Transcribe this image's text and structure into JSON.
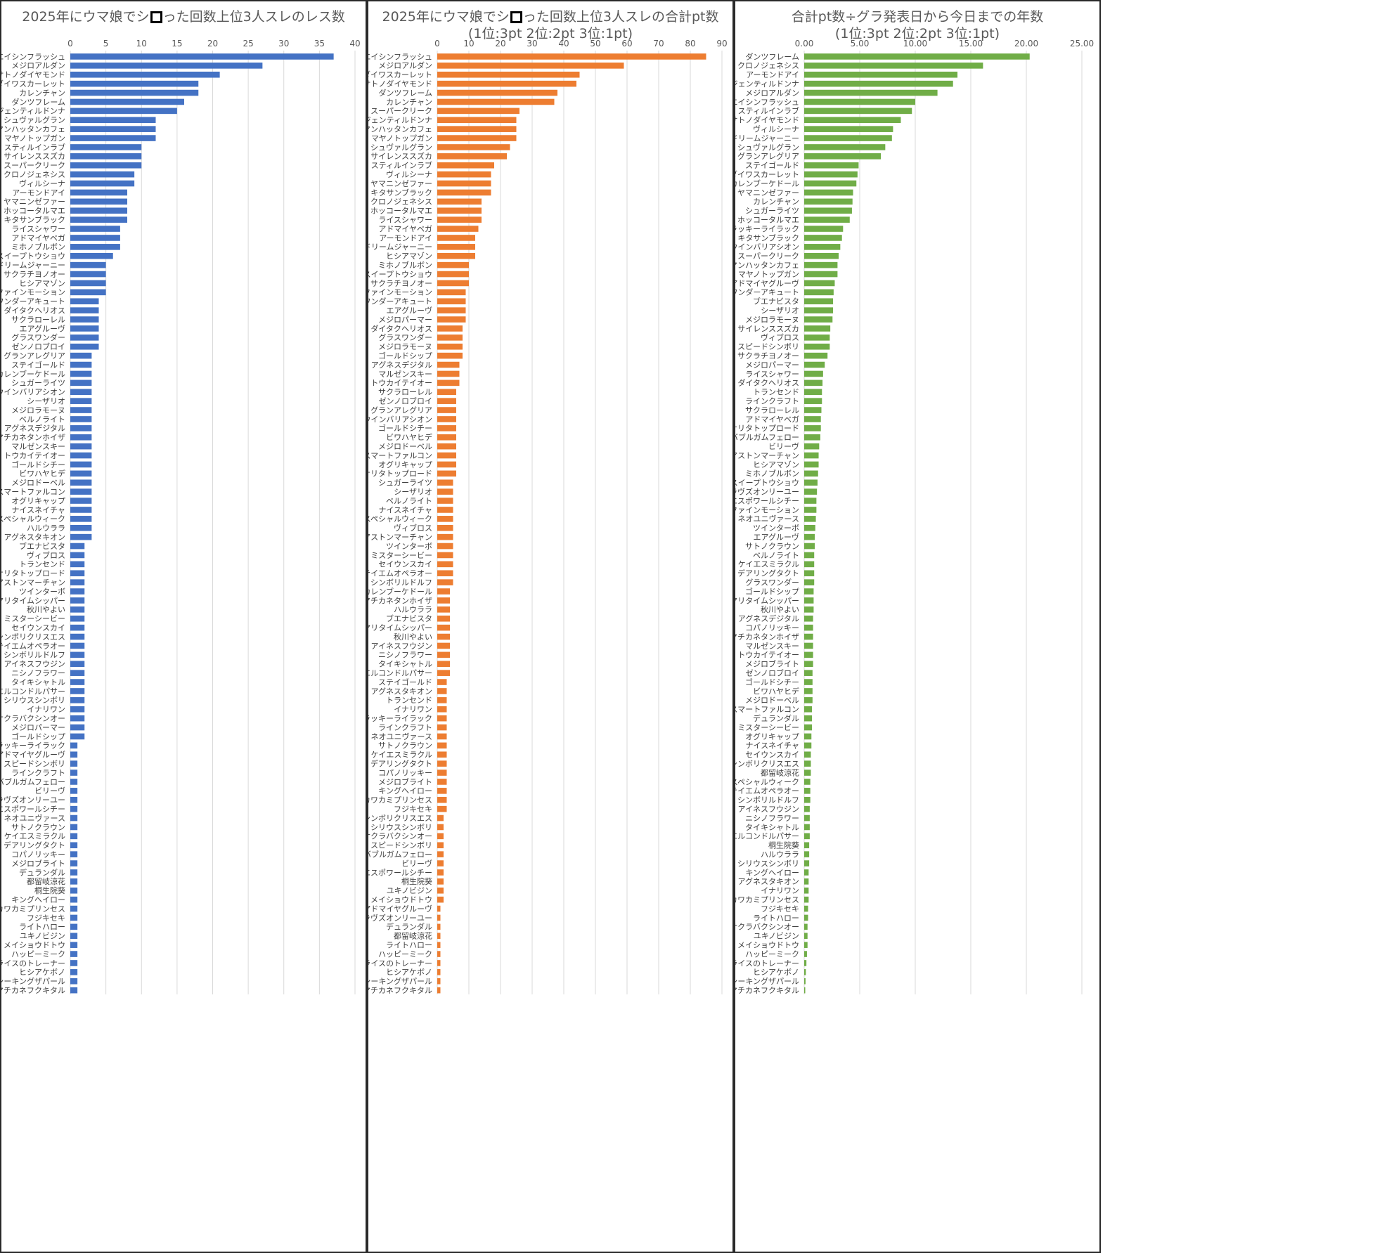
{
  "colors": {
    "blue": "#4472c4",
    "orange": "#ed7d31",
    "green": "#70ad47",
    "grid": "#d9d9d9",
    "text": "#595959",
    "border": "#2a2a2a"
  },
  "chart_data": [
    {
      "type": "bar",
      "orientation": "horizontal",
      "title_before_box": "2025年にウマ娘でシ",
      "title_after_box": "った回数上位3人スレのレス数",
      "xlim": [
        0,
        40
      ],
      "ticks": [
        "0",
        "5",
        "10",
        "15",
        "20",
        "25",
        "30",
        "35",
        "40"
      ],
      "tick_values": [
        0,
        5,
        10,
        15,
        20,
        25,
        30,
        35,
        40
      ],
      "grid": true,
      "color": "#4472c4",
      "categories": [
        "エイシンフラッシュ",
        "メジロアルダン",
        "サトノダイヤモンド",
        "ダイワスカーレット",
        "カレンチャン",
        "ダンツフレーム",
        "ジェンティルドンナ",
        "シュヴァルグラン",
        "マンハッタンカフェ",
        "マヤノトップガン",
        "スティルインラブ",
        "サイレンススズカ",
        "スーパークリーク",
        "クロノジェネシス",
        "ヴィルシーナ",
        "アーモンドアイ",
        "ヤマニンゼファー",
        "ホッコータルマエ",
        "キタサンブラック",
        "ライスシャワー",
        "アドマイヤベガ",
        "ミホノブルボン",
        "スイープトウショウ",
        "ドリームジャーニー",
        "サクラチヨノオー",
        "ヒシアマゾン",
        "ファインモーション",
        "ワンダーアキュート",
        "ダイタクヘリオス",
        "サクラローレル",
        "エアグルーヴ",
        "グラスワンダー",
        "ゼンノロブロイ",
        "グランアレグリア",
        "ステイゴールド",
        "カレンブーケドール",
        "シュガーライツ",
        "ウインバリアシオン",
        "シーザリオ",
        "メジロラモーヌ",
        "ベルノライト",
        "アグネスデジタル",
        "マチカネタンホイザ",
        "マルゼンスキー",
        "トウカイテイオー",
        "ゴールドシチー",
        "ビワハヤヒデ",
        "メジロドーベル",
        "スマートファルコン",
        "オグリキャップ",
        "ナイスネイチャ",
        "スペシャルウィーク",
        "ハルウララ",
        "アグネスタキオン",
        "ブエナビスタ",
        "ヴィブロス",
        "トランセンド",
        "ナリタトップロード",
        "アストンマーチャン",
        "ツインターボ",
        "マリタイムシッパー",
        "秋川やよい",
        "ミスターシービー",
        "セイウンスカイ",
        "シンボリクリスエス",
        "テイエムオペラオー",
        "シンボリルドルフ",
        "アイネスフウジン",
        "ニシノフラワー",
        "タイキシャトル",
        "エルコンドルパサー",
        "シリウスシンボリ",
        "イナリワン",
        "サクラバクシンオー",
        "メジロパーマー",
        "ゴールドシップ",
        "ラッキーライラック",
        "アドマイヤグルーヴ",
        "スピードシンボリ",
        "ラインクラフト",
        "バブルガムフェロー",
        "ビリーヴ",
        "ラヴズオンリーユー",
        "エスポワールシチー",
        "ネオユニヴァース",
        "サトノクラウン",
        "ケイエスミラクル",
        "デアリングタクト",
        "コパノリッキー",
        "メジロブライト",
        "デュランダル",
        "都留岐涼花",
        "桐生院葵",
        "キングヘイロー",
        "カワカミプリンセス",
        "フジキセキ",
        "ライトハロー",
        "ユキノビジン",
        "メイショウドトウ",
        "ハッピーミーク",
        "ライスのトレーナー",
        "ヒシアケボノ",
        "シーキングザパール",
        "マチカネフクキタル"
      ],
      "values": [
        37,
        27,
        21,
        18,
        18,
        16,
        15,
        12,
        12,
        12,
        10,
        10,
        10,
        9,
        9,
        8,
        8,
        8,
        8,
        7,
        7,
        7,
        6,
        5,
        5,
        5,
        5,
        4,
        4,
        4,
        4,
        4,
        4,
        3,
        3,
        3,
        3,
        3,
        3,
        3,
        3,
        3,
        3,
        3,
        3,
        3,
        3,
        3,
        3,
        3,
        3,
        3,
        3,
        3,
        2,
        2,
        2,
        2,
        2,
        2,
        2,
        2,
        2,
        2,
        2,
        2,
        2,
        2,
        2,
        2,
        2,
        2,
        2,
        2,
        2,
        2,
        1,
        1,
        1,
        1,
        1,
        1,
        1,
        1,
        1,
        1,
        1,
        1,
        1,
        1,
        1,
        1,
        1,
        1,
        1,
        1,
        1,
        1,
        1,
        1,
        1,
        1,
        1,
        1
      ]
    },
    {
      "type": "bar",
      "orientation": "horizontal",
      "title_before_box": "2025年にウマ娘でシ",
      "title_after_box": "った回数上位3人スレの合計pt数",
      "title_line2": "(1位:3pt 2位:2pt 3位:1pt)",
      "xlim": [
        0,
        90
      ],
      "ticks": [
        "0",
        "10",
        "20",
        "30",
        "40",
        "50",
        "60",
        "70",
        "80",
        "90"
      ],
      "tick_values": [
        0,
        10,
        20,
        30,
        40,
        50,
        60,
        70,
        80,
        90
      ],
      "grid": true,
      "color": "#ed7d31",
      "categories": [
        "エイシンフラッシュ",
        "メジロアルダン",
        "ダイワスカーレット",
        "サトノダイヤモンド",
        "ダンツフレーム",
        "カレンチャン",
        "スーパークリーク",
        "ジェンティルドンナ",
        "マンハッタンカフェ",
        "マヤノトップガン",
        "シュヴァルグラン",
        "サイレンススズカ",
        "スティルインラブ",
        "ヴィルシーナ",
        "ヤマニンゼファー",
        "キタサンブラック",
        "クロノジェネシス",
        "ホッコータルマエ",
        "ライスシャワー",
        "アドマイヤベガ",
        "アーモンドアイ",
        "ドリームジャーニー",
        "ヒシアマゾン",
        "ミホノブルボン",
        "スイープトウショウ",
        "サクラチヨノオー",
        "ファインモーション",
        "ワンダーアキュート",
        "エアグルーヴ",
        "メジロパーマー",
        "ダイタクヘリオス",
        "グラスワンダー",
        "メジロラモーヌ",
        "ゴールドシップ",
        "アグネスデジタル",
        "マルゼンスキー",
        "トウカイテイオー",
        "サクラローレル",
        "ゼンノロブロイ",
        "グランアレグリア",
        "ウインバリアシオン",
        "ゴールドシチー",
        "ビワハヤヒデ",
        "メジロドーベル",
        "スマートファルコン",
        "オグリキャップ",
        "ナリタトップロード",
        "シュガーライツ",
        "シーザリオ",
        "ベルノライト",
        "ナイスネイチャ",
        "スペシャルウィーク",
        "ヴィブロス",
        "アストンマーチャン",
        "ツインターボ",
        "ミスターシービー",
        "セイウンスカイ",
        "テイエムオペラオー",
        "シンボリルドルフ",
        "カレンブーケドール",
        "マチカネタンホイザ",
        "ハルウララ",
        "ブエナビスタ",
        "マリタイムシッパー",
        "秋川やよい",
        "アイネスフウジン",
        "ニシノフラワー",
        "タイキシャトル",
        "エルコンドルパサー",
        "ステイゴールド",
        "アグネスタキオン",
        "トランセンド",
        "イナリワン",
        "ラッキーライラック",
        "ラインクラフト",
        "ネオユニヴァース",
        "サトノクラウン",
        "ケイエスミラクル",
        "デアリングタクト",
        "コパノリッキー",
        "メジロブライト",
        "キングヘイロー",
        "カワカミプリンセス",
        "フジキセキ",
        "シンボリクリスエス",
        "シリウスシンボリ",
        "サクラバクシンオー",
        "スピードシンボリ",
        "バブルガムフェロー",
        "ビリーヴ",
        "エスポワールシチー",
        "桐生院葵",
        "ユキノビジン",
        "メイショウドトウ",
        "アドマイヤグルーヴ",
        "ラヴズオンリーユー",
        "デュランダル",
        "都留岐涼花",
        "ライトハロー",
        "ハッピーミーク",
        "ライスのトレーナー",
        "ヒシアケボノ",
        "シーキングザパール",
        "マチカネフクキタル"
      ],
      "values": [
        85,
        59,
        45,
        44,
        38,
        37,
        26,
        25,
        25,
        25,
        23,
        22,
        18,
        17,
        17,
        17,
        14,
        14,
        14,
        13,
        12,
        12,
        12,
        10,
        10,
        10,
        9,
        9,
        9,
        9,
        8,
        8,
        8,
        8,
        7,
        7,
        7,
        6,
        6,
        6,
        6,
        6,
        6,
        6,
        6,
        6,
        6,
        5,
        5,
        5,
        5,
        5,
        5,
        5,
        5,
        5,
        5,
        5,
        5,
        4,
        4,
        4,
        4,
        4,
        4,
        4,
        4,
        4,
        4,
        3,
        3,
        3,
        3,
        3,
        3,
        3,
        3,
        3,
        3,
        3,
        3,
        3,
        3,
        3,
        2,
        2,
        2,
        2,
        2,
        2,
        2,
        2,
        2,
        2,
        1,
        1,
        1,
        1,
        1,
        1,
        1,
        1,
        1,
        1
      ]
    },
    {
      "type": "bar",
      "orientation": "horizontal",
      "title": "合計pt数÷グラ発表日から今日までの年数",
      "title_line2": "(1位:3pt 2位:2pt 3位:1pt)",
      "xlim": [
        0,
        25
      ],
      "ticks": [
        "0.00",
        "5.00",
        "10.00",
        "15.00",
        "20.00",
        "25.00"
      ],
      "tick_values": [
        0,
        5,
        10,
        15,
        20,
        25
      ],
      "grid": true,
      "color": "#70ad47",
      "categories": [
        "ダンツフレーム",
        "クロノジェネシス",
        "アーモンドアイ",
        "ジェンティルドンナ",
        "メジロアルダン",
        "エイシンフラッシュ",
        "スティルインラブ",
        "サトノダイヤモンド",
        "ヴィルシーナ",
        "ドリームジャーニー",
        "シュヴァルグラン",
        "グランアレグリア",
        "ステイゴールド",
        "ダイワスカーレット",
        "カレンブーケドール",
        "ヤマニンゼファー",
        "カレンチャン",
        "シュガーライツ",
        "ホッコータルマエ",
        "ラッキーライラック",
        "キタサンブラック",
        "ウインバリアシオン",
        "スーパークリーク",
        "マンハッタンカフェ",
        "マヤノトップガン",
        "アドマイヤグルーヴ",
        "ワンダーアキュート",
        "ブエナビスタ",
        "シーザリオ",
        "メジロラモーヌ",
        "サイレンススズカ",
        "ヴィブロス",
        "スピードシンボリ",
        "サクラチヨノオー",
        "メジロパーマー",
        "ライスシャワー",
        "ダイタクヘリオス",
        "トランセンド",
        "ラインクラフト",
        "サクラローレル",
        "アドマイヤベガ",
        "ナリタトップロード",
        "バブルガムフェロー",
        "ビリーヴ",
        "アストンマーチャン",
        "ヒシアマゾン",
        "ミホノブルボン",
        "スイープトウショウ",
        "ラヴズオンリーユー",
        "エスポワールシチー",
        "ファインモーション",
        "ネオユニヴァース",
        "ツインターボ",
        "エアグルーヴ",
        "サトノクラウン",
        "ベルノライト",
        "ケイエスミラクル",
        "デアリングタクト",
        "グラスワンダー",
        "ゴールドシップ",
        "マリタイムシッパー",
        "秋川やよい",
        "アグネスデジタル",
        "コパノリッキー",
        "マチカネタンホイザ",
        "マルゼンスキー",
        "トウカイテイオー",
        "メジロブライト",
        "ゼンノロブロイ",
        "ゴールドシチー",
        "ビワハヤヒデ",
        "メジロドーベル",
        "スマートファルコン",
        "デュランダル",
        "ミスターシービー",
        "オグリキャップ",
        "ナイスネイチャ",
        "セイウンスカイ",
        "シンボリクリスエス",
        "都留岐涼花",
        "スペシャルウィーク",
        "テイエムオペラオー",
        "シンボリルドルフ",
        "アイネスフウジン",
        "ニシノフラワー",
        "タイキシャトル",
        "エルコンドルパサー",
        "桐生院葵",
        "ハルウララ",
        "シリウスシンボリ",
        "キングヘイロー",
        "アグネスタキオン",
        "イナリワン",
        "カワカミプリンセス",
        "フジキセキ",
        "ライトハロー",
        "サクラバクシンオー",
        "ユキノビジン",
        "メイショウドトウ",
        "ハッピーミーク",
        "ライスのトレーナー",
        "ヒシアケボノ",
        "シーキングザパール",
        "マチカネフクキタル"
      ],
      "values": [
        20.3,
        16.1,
        13.8,
        13.4,
        12.0,
        10.0,
        9.7,
        8.7,
        8.0,
        7.9,
        7.3,
        6.9,
        4.9,
        4.8,
        4.7,
        4.4,
        4.35,
        4.3,
        4.1,
        3.5,
        3.4,
        3.25,
        3.1,
        3.0,
        3.0,
        2.75,
        2.65,
        2.6,
        2.6,
        2.55,
        2.35,
        2.3,
        2.3,
        2.1,
        1.85,
        1.7,
        1.65,
        1.6,
        1.6,
        1.55,
        1.5,
        1.5,
        1.45,
        1.35,
        1.3,
        1.3,
        1.25,
        1.2,
        1.15,
        1.1,
        1.1,
        1.05,
        1.0,
        0.95,
        0.95,
        0.9,
        0.9,
        0.9,
        0.9,
        0.85,
        0.85,
        0.85,
        0.8,
        0.8,
        0.8,
        0.8,
        0.8,
        0.8,
        0.75,
        0.75,
        0.75,
        0.75,
        0.7,
        0.7,
        0.7,
        0.65,
        0.65,
        0.6,
        0.6,
        0.6,
        0.55,
        0.55,
        0.55,
        0.5,
        0.5,
        0.5,
        0.5,
        0.45,
        0.45,
        0.45,
        0.4,
        0.4,
        0.4,
        0.4,
        0.35,
        0.35,
        0.3,
        0.3,
        0.3,
        0.25,
        0.2,
        0.15,
        0.12,
        0.08
      ]
    }
  ]
}
